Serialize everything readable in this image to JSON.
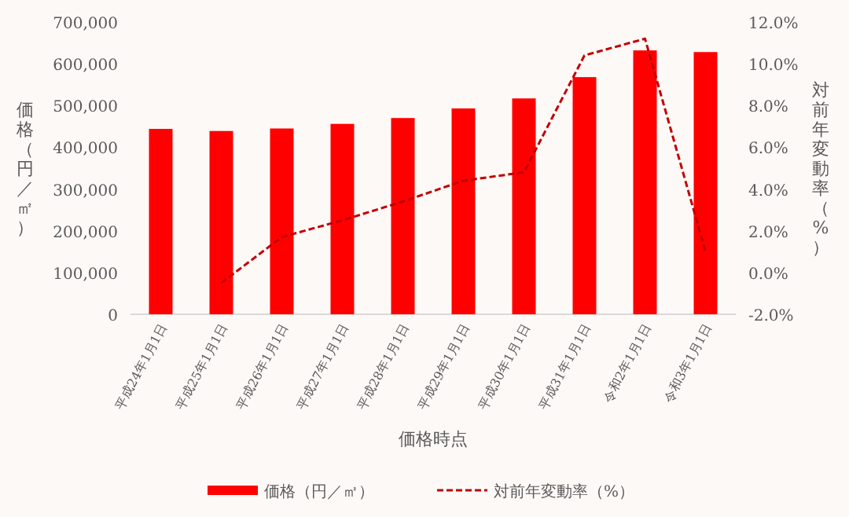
{
  "chart_data": {
    "type": "bar",
    "xlabel": "価格時点",
    "ylabel": "価格（円／㎡）",
    "y2label": "対前年変動率（%）",
    "categories": [
      "平成24年1月1日",
      "平成25年1月1日",
      "平成26年1月1日",
      "平成27年1月1日",
      "平成28年1月1日",
      "平成29年1月1日",
      "平成30年1月1日",
      "平成31年1月1日",
      "令和2年1月1日",
      "令和3年1月1日"
    ],
    "series": [
      {
        "name": "価格（円／㎡）",
        "color": "#ff0000",
        "values": [
          444000,
          439000,
          445000,
          456000,
          470000,
          493000,
          517000,
          568000,
          632000,
          628000
        ]
      },
      {
        "name": "対前年変動率（%）",
        "type": "line",
        "axis": "y2",
        "color": "#c00000",
        "line_style": "dashed",
        "values": [
          null,
          -0.5,
          1.7,
          2.5,
          3.4,
          4.4,
          4.8,
          10.4,
          11.2,
          1.0
        ]
      }
    ],
    "ylim": [
      0,
      700000
    ],
    "yticks": [
      {
        "value": 0,
        "label": "0"
      },
      {
        "value": 100000,
        "label": "100,000"
      },
      {
        "value": 200000,
        "label": "200,000"
      },
      {
        "value": 300000,
        "label": "300,000"
      },
      {
        "value": 400000,
        "label": "400,000"
      },
      {
        "value": 500000,
        "label": "500,000"
      },
      {
        "value": 600000,
        "label": "600,000"
      },
      {
        "value": 700000,
        "label": "700,000"
      }
    ],
    "y2lim": [
      -2,
      12
    ],
    "y2ticks": [
      {
        "value": -2,
        "label": "-2.0%"
      },
      {
        "value": 0,
        "label": "0.0%"
      },
      {
        "value": 2,
        "label": "2.0%"
      },
      {
        "value": 4,
        "label": "4.0%"
      },
      {
        "value": 6,
        "label": "6.0%"
      },
      {
        "value": 8,
        "label": "8.0%"
      },
      {
        "value": 10,
        "label": "10.0%"
      },
      {
        "value": 12,
        "label": "12.0%"
      }
    ],
    "grid": false,
    "legend": "bottom"
  }
}
